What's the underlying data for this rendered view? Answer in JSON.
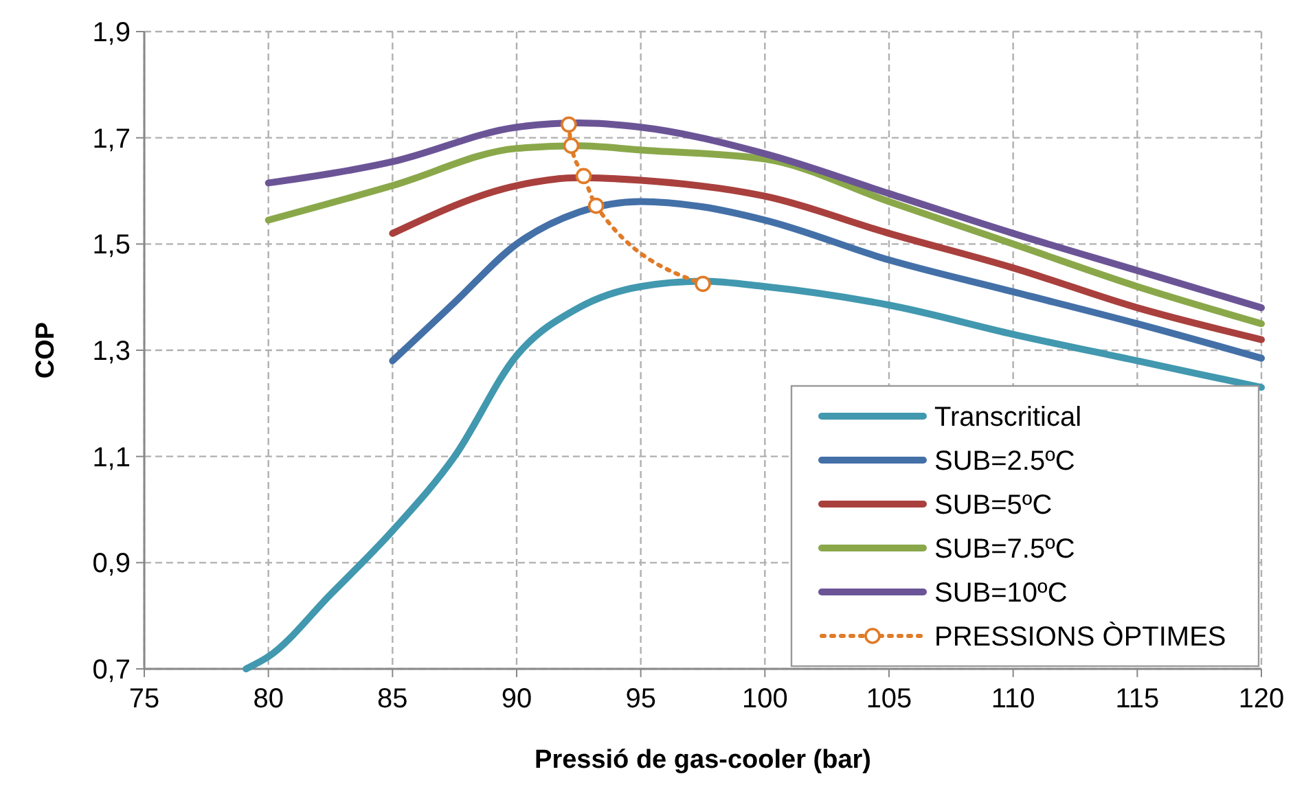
{
  "chart_data": {
    "type": "line",
    "xlabel": "Pressió de gas-cooler (bar)",
    "ylabel": "COP",
    "xlim": [
      75,
      120
    ],
    "xticks": [
      75,
      80,
      85,
      90,
      95,
      100,
      105,
      110,
      115,
      120
    ],
    "ylim": [
      0.7,
      1.9
    ],
    "yticks": [
      {
        "value": 0.7,
        "label": "0,7"
      },
      {
        "value": 0.9,
        "label": "0,9"
      },
      {
        "value": 1.1,
        "label": "1,1"
      },
      {
        "value": 1.3,
        "label": "1,3"
      },
      {
        "value": 1.5,
        "label": "1,5"
      },
      {
        "value": 1.7,
        "label": "1,7"
      },
      {
        "value": 1.9,
        "label": "1,9"
      }
    ],
    "grid": true,
    "legend": "bottom right",
    "marker": "none",
    "line_style": "solid",
    "series": [
      {
        "name": "Transcritical",
        "color": "#4198af",
        "x": [
          79.1,
          80,
          82.5,
          85,
          87.5,
          90,
          92.5,
          95,
          97.5,
          100,
          105,
          110,
          115,
          120
        ],
        "values": [
          0.7,
          0.723,
          0.84,
          0.96,
          1.1,
          1.29,
          1.38,
          1.42,
          1.43,
          1.42,
          1.385,
          1.33,
          1.28,
          1.23
        ]
      },
      {
        "name": "SUB=2.5ºC",
        "color": "#4470a8",
        "x": [
          85,
          87.5,
          90,
          92.5,
          95,
          97.5,
          100,
          105,
          110,
          115,
          120
        ],
        "values": [
          1.28,
          1.39,
          1.5,
          1.56,
          1.58,
          1.57,
          1.545,
          1.47,
          1.41,
          1.35,
          1.285
        ]
      },
      {
        "name": "SUB=5ºC",
        "color": "#a9403d",
        "x": [
          85,
          90,
          92.5,
          95,
          100,
          105,
          110,
          115,
          120
        ],
        "values": [
          1.52,
          1.61,
          1.625,
          1.62,
          1.59,
          1.52,
          1.455,
          1.38,
          1.32
        ]
      },
      {
        "name": "SUB=7.5ºC",
        "color": "#8aa84a",
        "x": [
          80,
          85,
          90,
          92.5,
          95,
          100,
          105,
          110,
          115,
          120
        ],
        "values": [
          1.545,
          1.61,
          1.68,
          1.685,
          1.677,
          1.66,
          1.58,
          1.5,
          1.42,
          1.35
        ]
      },
      {
        "name": "SUB=10ºC",
        "color": "#6b5496",
        "x": [
          80,
          85,
          90,
          92.5,
          95,
          100,
          105,
          110,
          115,
          120
        ],
        "values": [
          1.615,
          1.655,
          1.72,
          1.728,
          1.72,
          1.67,
          1.595,
          1.52,
          1.45,
          1.38
        ]
      },
      {
        "name": "PRESSIONS ÒPTIMES",
        "color": "#e07b28",
        "x": [
          92.1,
          92.2,
          92.7,
          93.2,
          97.5
        ],
        "values": [
          1.725,
          1.685,
          1.628,
          1.572,
          1.425
        ],
        "line_style": "dotted",
        "marker": "circle"
      }
    ]
  }
}
